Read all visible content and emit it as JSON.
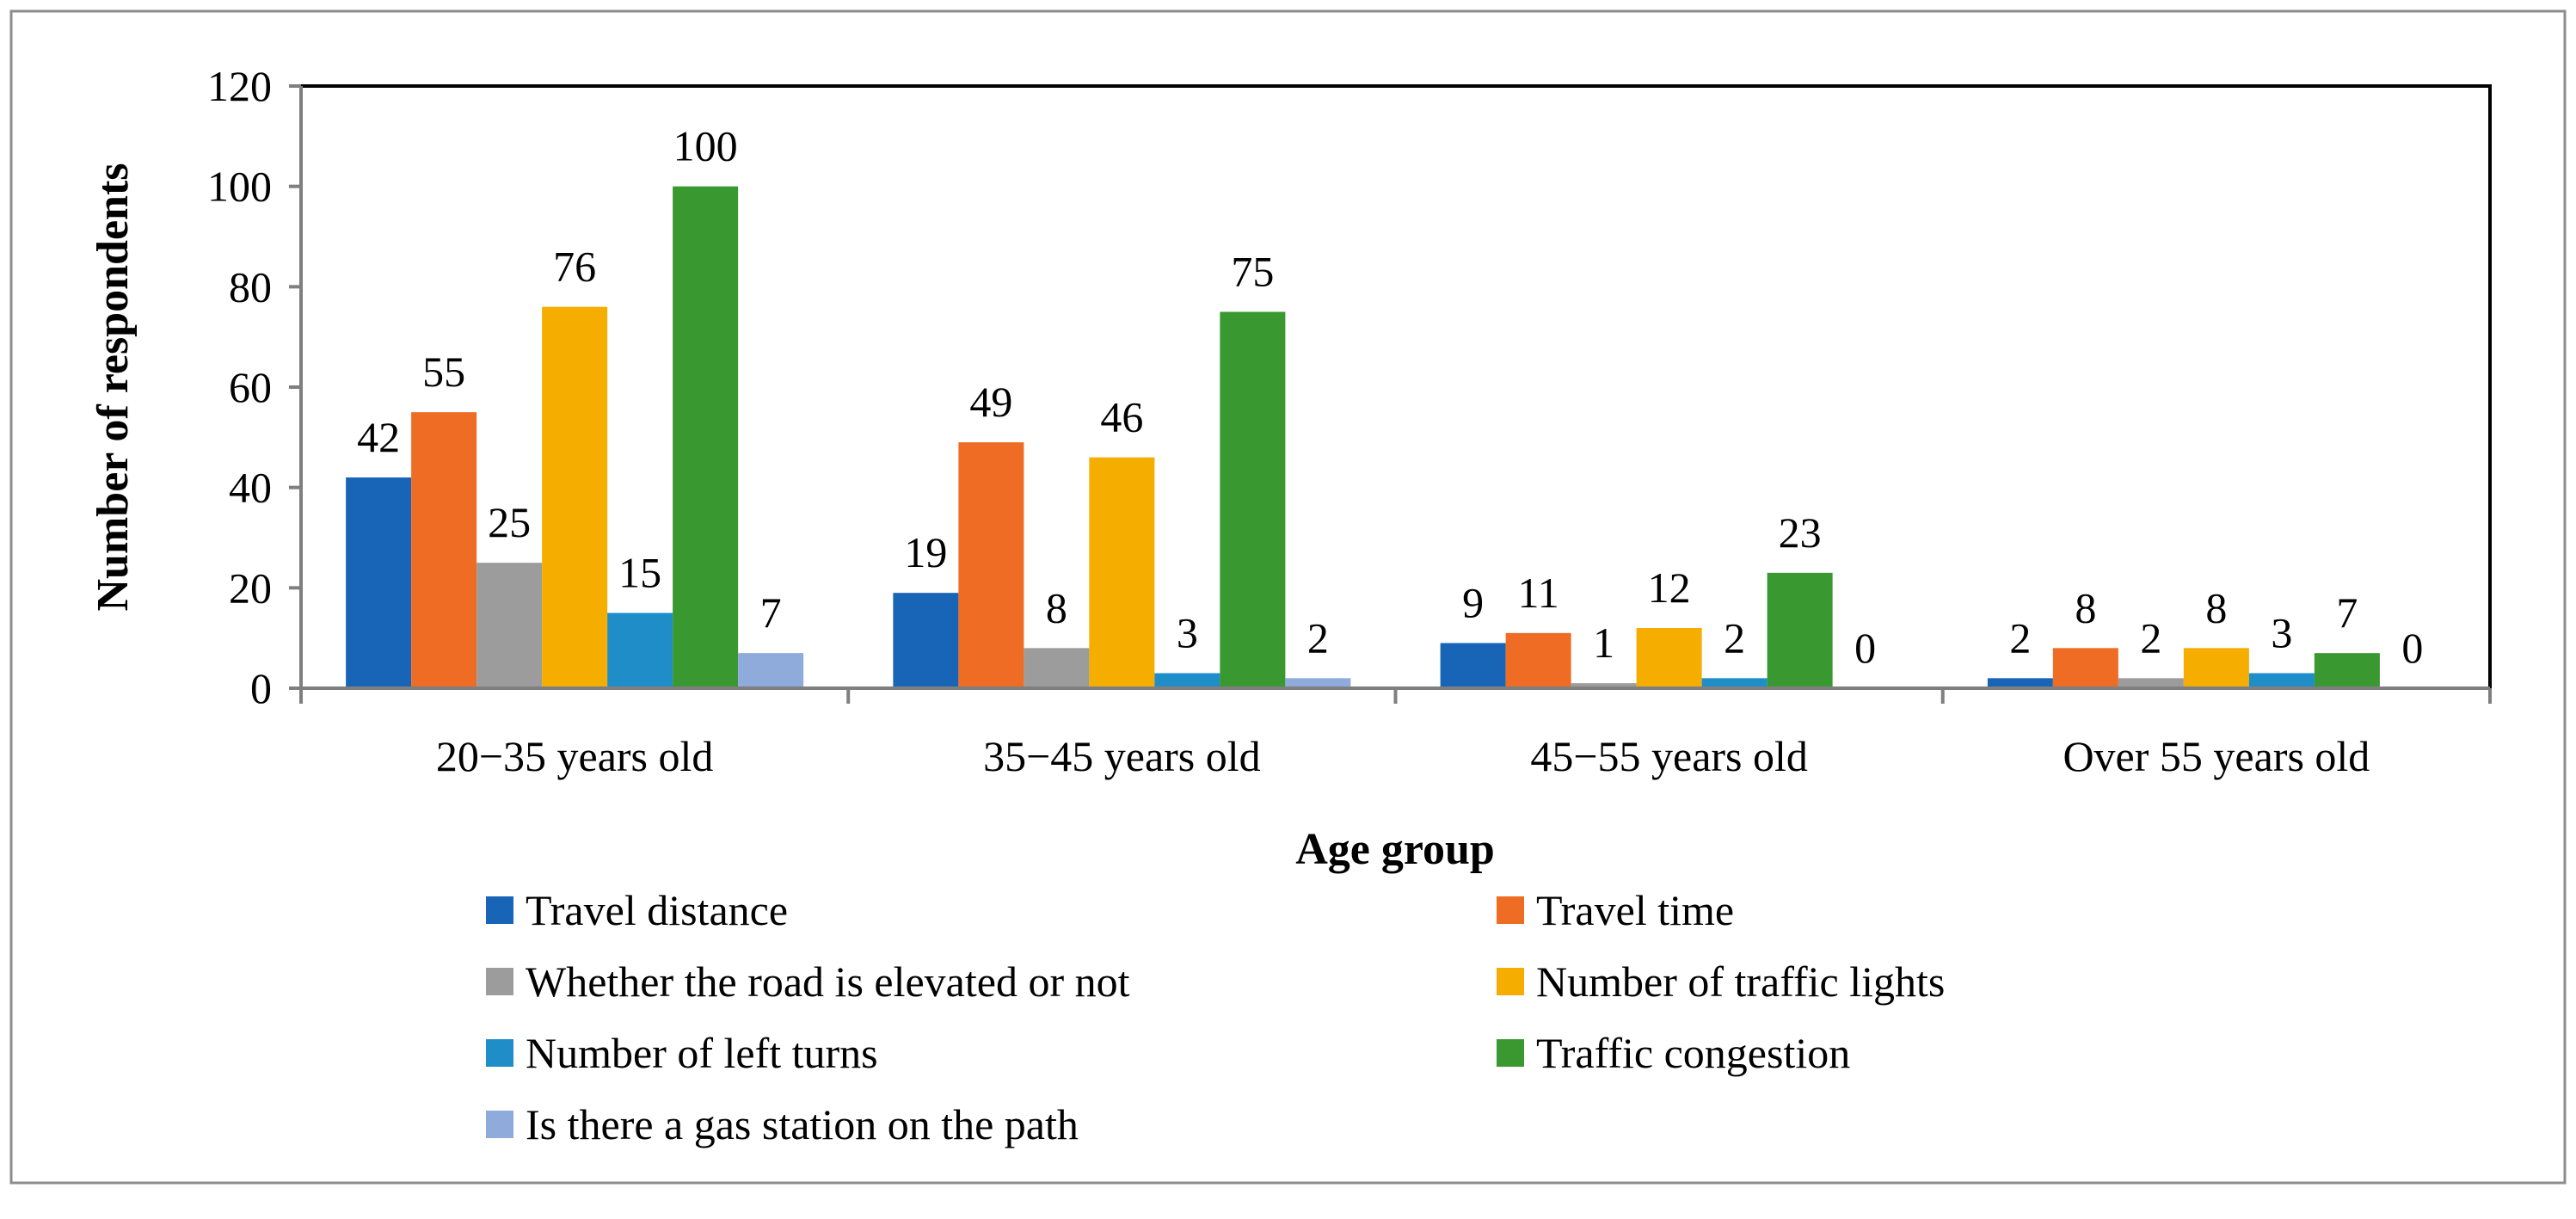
{
  "chart_data": {
    "type": "bar",
    "title": "",
    "xlabel": "Age group",
    "ylabel": "Number of respondents",
    "ylim": [
      0,
      120
    ],
    "yticks": [
      0,
      20,
      40,
      60,
      80,
      100,
      120
    ],
    "categories": [
      "20−35 years old",
      "35−45 years old",
      "45−55 years old",
      "Over 55 years old"
    ],
    "series": [
      {
        "name": "Travel distance",
        "color": "#1865b8",
        "values": [
          42,
          19,
          9,
          2
        ]
      },
      {
        "name": "Travel time",
        "color": "#ee6c24",
        "values": [
          55,
          49,
          11,
          8
        ]
      },
      {
        "name": "Whether the road is elevated or not",
        "color": "#9c9c9c",
        "values": [
          25,
          8,
          1,
          2
        ]
      },
      {
        "name": "Number of traffic lights",
        "color": "#f5ad00",
        "values": [
          76,
          46,
          12,
          8
        ]
      },
      {
        "name": "Number of left turns",
        "color": "#1f8dc8",
        "values": [
          15,
          3,
          2,
          3
        ]
      },
      {
        "name": "Traffic congestion",
        "color": "#39982f",
        "values": [
          100,
          75,
          23,
          7
        ]
      },
      {
        "name": "Is there a gas station on the path",
        "color": "#8eabdc",
        "values": [
          7,
          2,
          0,
          0
        ]
      }
    ],
    "grid": false,
    "legend": "bottom"
  }
}
